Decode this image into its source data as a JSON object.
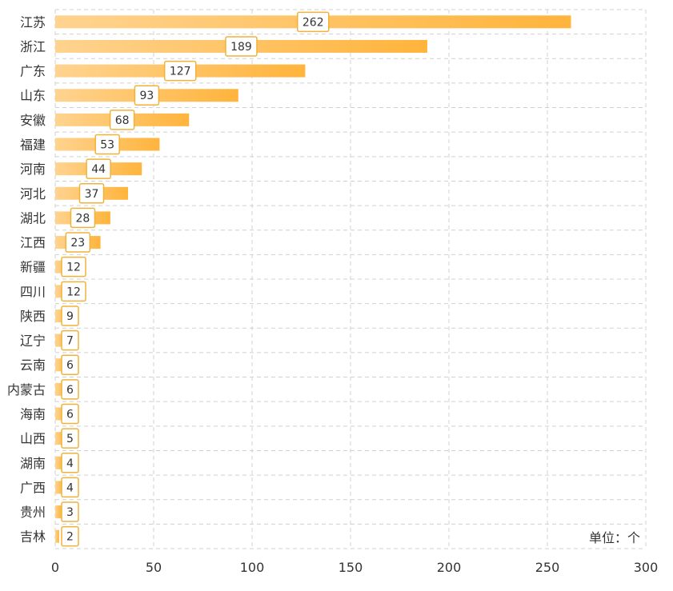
{
  "chart_data": {
    "type": "bar",
    "orientation": "horizontal",
    "categories": [
      "江苏",
      "浙江",
      "广东",
      "山东",
      "安徽",
      "福建",
      "河南",
      "河北",
      "湖北",
      "江西",
      "新疆",
      "四川",
      "陕西",
      "辽宁",
      "云南",
      "内蒙古",
      "海南",
      "山西",
      "湖南",
      "广西",
      "贵州",
      "吉林"
    ],
    "values": [
      262,
      189,
      127,
      93,
      68,
      53,
      44,
      37,
      28,
      23,
      12,
      12,
      9,
      7,
      6,
      6,
      6,
      5,
      4,
      4,
      3,
      2
    ],
    "xlim": [
      0,
      300
    ],
    "xticks": [
      "0",
      "50",
      "100",
      "150",
      "200",
      "250",
      "300"
    ],
    "unit_label": "单位：个",
    "grid": true,
    "colors": {
      "bar_start": "#ffd38f",
      "bar_end": "#ffb43c",
      "label_border": "#f0b23a",
      "grid": "#d0d0d0"
    }
  }
}
